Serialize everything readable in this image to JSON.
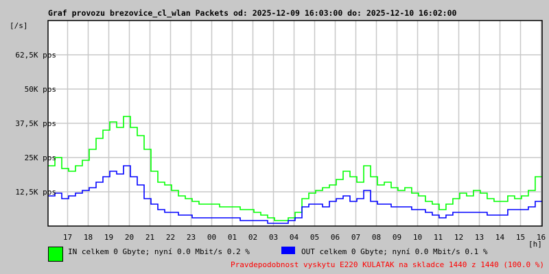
{
  "chart_data": {
    "type": "line",
    "title": "Graf provozu brezovice_cl_wlan Packets od: 2025-12-09 16:03:00 do: 2025-12-10 16:02:00",
    "ylabel": "[/s]",
    "xlabel": "[h]",
    "ylim": [
      0,
      75
    ],
    "y_unit": "K pps",
    "yticks": [
      {
        "value": 12.5,
        "label": "12,5K pps"
      },
      {
        "value": 25,
        "label": "25K pps"
      },
      {
        "value": 37.5,
        "label": "37,5K pps"
      },
      {
        "value": 50,
        "label": "50K pps"
      },
      {
        "value": 62.5,
        "label": "62,5K pps"
      }
    ],
    "x_range_hours": [
      16.05,
      40.05
    ],
    "xticks": [
      {
        "value": 17,
        "label": "17"
      },
      {
        "value": 18,
        "label": "18"
      },
      {
        "value": 19,
        "label": "19"
      },
      {
        "value": 20,
        "label": "20"
      },
      {
        "value": 21,
        "label": "21"
      },
      {
        "value": 22,
        "label": "22"
      },
      {
        "value": 23,
        "label": "23"
      },
      {
        "value": 24,
        "label": "00"
      },
      {
        "value": 25,
        "label": "01"
      },
      {
        "value": 26,
        "label": "02"
      },
      {
        "value": 27,
        "label": "03"
      },
      {
        "value": 28,
        "label": "04"
      },
      {
        "value": 29,
        "label": "05"
      },
      {
        "value": 30,
        "label": "06"
      },
      {
        "value": 31,
        "label": "07"
      },
      {
        "value": 32,
        "label": "08"
      },
      {
        "value": 33,
        "label": "09"
      },
      {
        "value": 34,
        "label": "10"
      },
      {
        "value": 35,
        "label": "11"
      },
      {
        "value": 36,
        "label": "12"
      },
      {
        "value": 37,
        "label": "13"
      },
      {
        "value": 38,
        "label": "14"
      },
      {
        "value": 39,
        "label": "15"
      },
      {
        "value": 40,
        "label": "16"
      }
    ],
    "grid": true,
    "x_step_hours": 0.3333,
    "series": [
      {
        "name": "IN",
        "color": "#00ff00",
        "values": [
          22,
          25,
          21,
          20,
          22,
          24,
          28,
          32,
          35,
          38,
          36,
          40,
          36,
          33,
          28,
          20,
          16,
          15,
          13,
          11,
          10,
          9,
          8,
          8,
          8,
          7,
          7,
          7,
          6,
          6,
          5,
          4,
          3,
          2,
          2,
          3,
          5,
          10,
          12,
          13,
          14,
          15,
          17,
          20,
          18,
          16,
          22,
          18,
          15,
          16,
          14,
          13,
          14,
          12,
          11,
          9,
          8,
          6,
          8,
          10,
          12,
          11,
          13,
          12,
          10,
          9,
          9,
          11,
          10,
          11,
          13,
          18
        ]
      },
      {
        "name": "OUT",
        "color": "#0000ff",
        "values": [
          11,
          12,
          10,
          11,
          12,
          13,
          14,
          16,
          18,
          20,
          19,
          22,
          18,
          15,
          10,
          8,
          6,
          5,
          5,
          4,
          4,
          3,
          3,
          3,
          3,
          3,
          3,
          3,
          2,
          2,
          2,
          2,
          1,
          1,
          1,
          2,
          3,
          7,
          8,
          8,
          7,
          9,
          10,
          11,
          9,
          10,
          13,
          9,
          8,
          8,
          7,
          7,
          7,
          6,
          6,
          5,
          4,
          3,
          4,
          5,
          5,
          5,
          5,
          5,
          4,
          4,
          4,
          6,
          6,
          6,
          7,
          9
        ]
      }
    ]
  },
  "legend": {
    "in_text": "IN celkem 0 Gbyte; nyní    0.0 Mbit/s 0.2 %",
    "out_text": "OUT celkem 0 Gbyte; nyní    0.0 Mbit/s 0.1 %",
    "in_color": "#00ff00",
    "out_color": "#0000ff"
  },
  "footer": {
    "note": "Pravdepodobnost vyskytu E220 KULATAK na skladce 1440 z 1440 (100.0 %)",
    "color": "#ff0000"
  }
}
